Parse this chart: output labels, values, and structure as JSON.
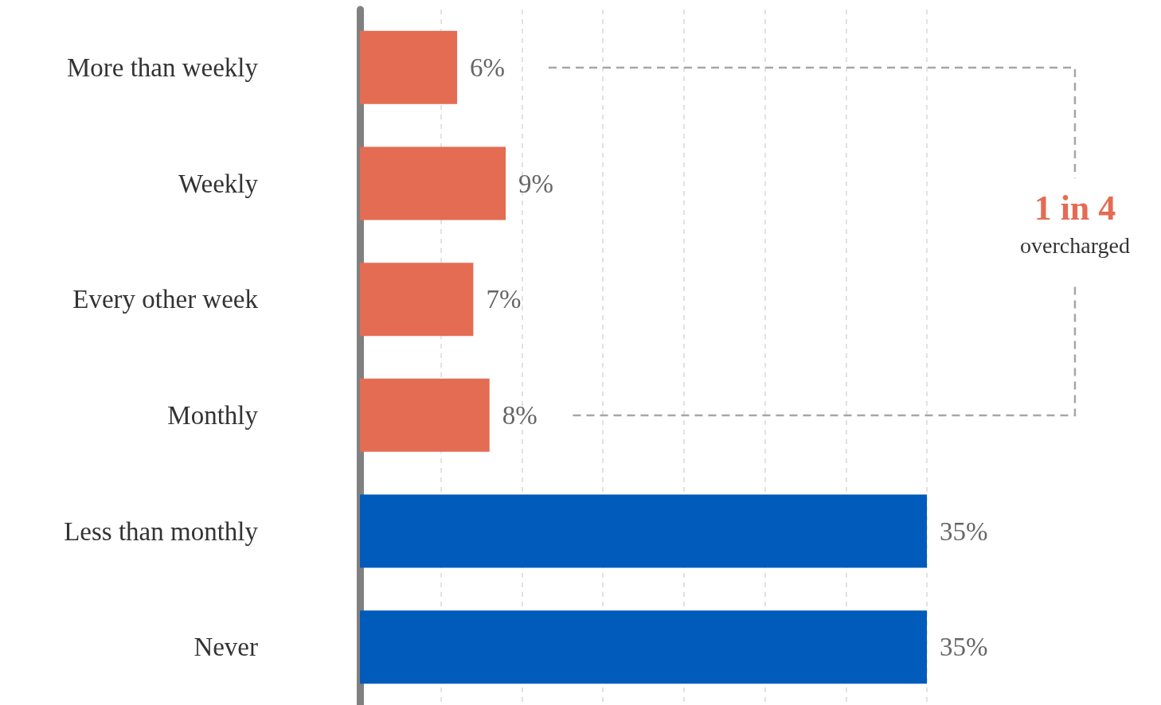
{
  "chart_data": {
    "type": "bar",
    "orientation": "horizontal",
    "categories": [
      "More than weekly",
      "Weekly",
      "Every other week",
      "Monthly",
      "Less than monthly",
      "Never"
    ],
    "values": [
      6,
      9,
      7,
      8,
      35,
      35
    ],
    "colors": [
      "#e46c53",
      "#e46c53",
      "#e46c53",
      "#e46c53",
      "#005bbb",
      "#005bbb"
    ],
    "value_labels": [
      "6%",
      "9%",
      "7%",
      "8%",
      "35%",
      "35%"
    ],
    "xlim": [
      0,
      35
    ],
    "xticks": [
      {
        "value": 0,
        "label": null
      },
      {
        "value": 5,
        "label": null
      },
      {
        "value": 10,
        "label": null
      },
      {
        "value": 15,
        "label": null
      },
      {
        "value": 20,
        "label": null
      },
      {
        "value": 25,
        "label": null
      },
      {
        "value": 30,
        "label": null
      },
      {
        "value": 35,
        "label": null
      }
    ],
    "grid": "x",
    "tick_labels": "y",
    "annotations": [
      "1 in 4",
      "overcharged"
    ]
  }
}
